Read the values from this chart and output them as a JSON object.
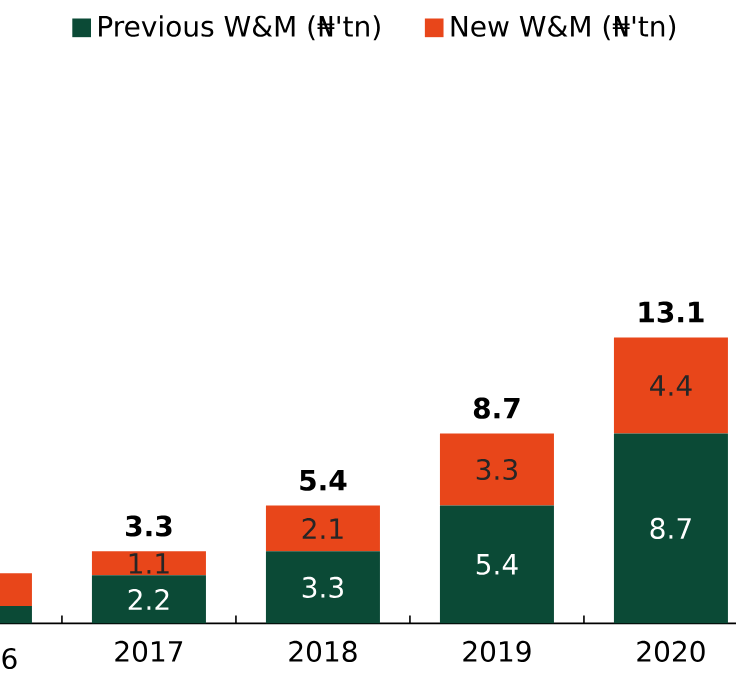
{
  "chart_data": {
    "type": "bar",
    "stacked": true,
    "legend": "top",
    "categories": [
      "6",
      "2017",
      "2018",
      "2019",
      "2020"
    ],
    "series": [
      {
        "name": "Previous W&M (₦'tn)",
        "color": "#0b4a36",
        "values": [
          0.8,
          2.2,
          3.3,
          5.4,
          8.7
        ],
        "value_labels": [
          null,
          "2.2",
          "3.3",
          "5.4",
          "8.7"
        ]
      },
      {
        "name": "New W&M (₦'tn)",
        "color": "#e8461a",
        "values": [
          1.5,
          1.1,
          2.1,
          3.3,
          4.4
        ],
        "value_labels": [
          null,
          "1.1",
          "2.1",
          "3.3",
          "4.4"
        ]
      }
    ],
    "totals": [
      null,
      "3.3",
      "5.4",
      "8.7",
      "13.1"
    ]
  }
}
